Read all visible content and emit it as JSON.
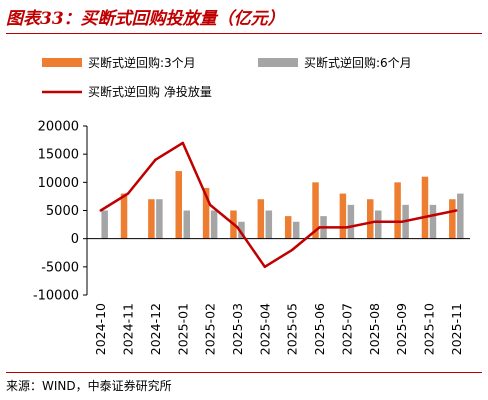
{
  "title": "图表33：买断式回购投放量（亿元）",
  "source": "来源：WIND，中泰证券研究所",
  "colors": {
    "title": "#c00000",
    "bar_3m": "#ed7d31",
    "bar_6m": "#a5a5a5",
    "net_line": "#c00000",
    "axis": "#000000"
  },
  "chart_data": {
    "type": "bar",
    "categories": [
      "2024-10",
      "2024-11",
      "2024-12",
      "2025-01",
      "2025-02",
      "2025-03",
      "2025-04",
      "2025-05",
      "2025-06",
      "2025-07",
      "2025-08",
      "2025-09",
      "2025-10",
      "2025-11"
    ],
    "series": [
      {
        "name": "买断式逆回购:3个月",
        "type": "bar",
        "values": [
          0,
          8000,
          7000,
          12000,
          9000,
          5000,
          7000,
          4000,
          10000,
          8000,
          7000,
          10000,
          11000,
          7000
        ]
      },
      {
        "name": "买断式逆回购:6个月",
        "type": "bar",
        "values": [
          5000,
          0,
          7000,
          5000,
          5000,
          3000,
          5000,
          3000,
          4000,
          6000,
          5000,
          6000,
          6000,
          8000
        ]
      },
      {
        "name": "买断式逆回购 净投放量",
        "type": "line",
        "values": [
          5000,
          8000,
          14000,
          17000,
          6000,
          2000,
          -5000,
          -2000,
          2000,
          2000,
          3000,
          3000,
          4000,
          5000
        ]
      }
    ],
    "ylim": [
      -10000,
      20000
    ],
    "yticks": [
      -10000,
      -5000,
      0,
      5000,
      10000,
      15000,
      20000
    ],
    "grid": false,
    "legend": "top"
  }
}
